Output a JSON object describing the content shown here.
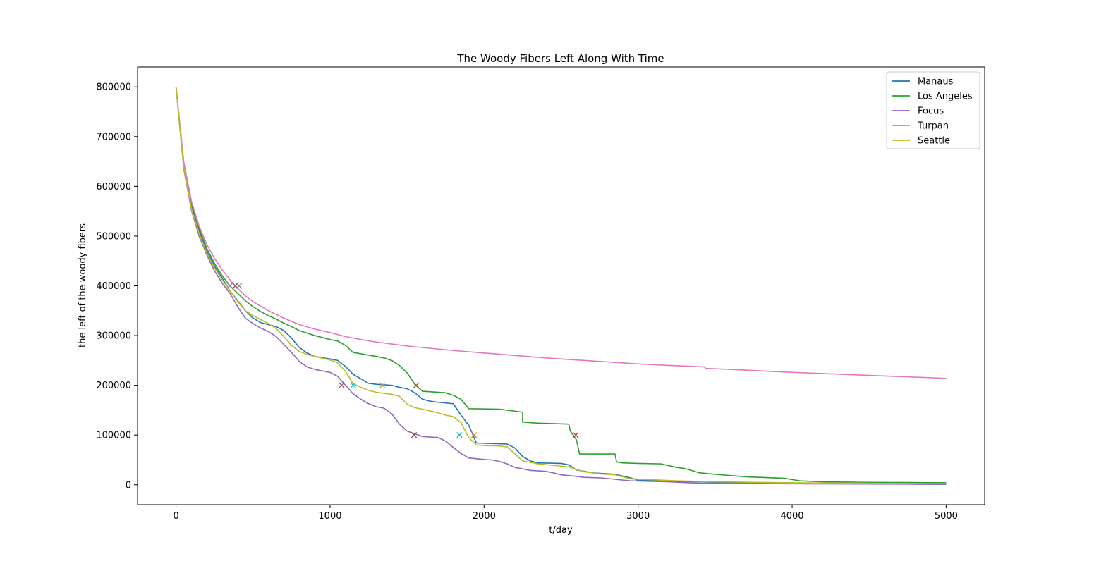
{
  "chart_data": {
    "type": "line",
    "title": "The Woody Fibers Left Along With Time",
    "xlabel": "t/day",
    "ylabel": "the left of the woody fibers",
    "xlim": [
      -250,
      5250
    ],
    "ylim": [
      -40000,
      840000
    ],
    "x_ticks": [
      0,
      1000,
      2000,
      3000,
      4000,
      5000
    ],
    "x_tick_labels": [
      "0",
      "1000",
      "2000",
      "3000",
      "4000",
      "5000"
    ],
    "y_ticks": [
      0,
      100000,
      200000,
      300000,
      400000,
      500000,
      600000,
      700000,
      800000
    ],
    "y_tick_labels": [
      "0",
      "100000",
      "200000",
      "300000",
      "400000",
      "500000",
      "600000",
      "700000",
      "800000"
    ],
    "grid": false,
    "legend_position": "top-right",
    "series": [
      {
        "name": "Manaus",
        "color": "#1f77b4",
        "points": [
          [
            0,
            800000
          ],
          [
            50,
            640000
          ],
          [
            100,
            560000
          ],
          [
            150,
            510000
          ],
          [
            200,
            470000
          ],
          [
            250,
            440000
          ],
          [
            300,
            415000
          ],
          [
            350,
            390000
          ],
          [
            400,
            370000
          ],
          [
            450,
            350000
          ],
          [
            500,
            335000
          ],
          [
            550,
            326000
          ],
          [
            600,
            322000
          ],
          [
            650,
            318000
          ],
          [
            700,
            310000
          ],
          [
            750,
            295000
          ],
          [
            800,
            276000
          ],
          [
            850,
            265000
          ],
          [
            900,
            258000
          ],
          [
            1000,
            253000
          ],
          [
            1050,
            250000
          ],
          [
            1100,
            238000
          ],
          [
            1150,
            222000
          ],
          [
            1200,
            213000
          ],
          [
            1250,
            204000
          ],
          [
            1300,
            202000
          ],
          [
            1400,
            200000
          ],
          [
            1450,
            196000
          ],
          [
            1500,
            193000
          ],
          [
            1550,
            185000
          ],
          [
            1600,
            172000
          ],
          [
            1650,
            168000
          ],
          [
            1700,
            166000
          ],
          [
            1800,
            163000
          ],
          [
            1850,
            140000
          ],
          [
            1900,
            120000
          ],
          [
            1950,
            84000
          ],
          [
            2050,
            83000
          ],
          [
            2150,
            82000
          ],
          [
            2200,
            74000
          ],
          [
            2250,
            57000
          ],
          [
            2300,
            48000
          ],
          [
            2350,
            44000
          ],
          [
            2500,
            43000
          ],
          [
            2550,
            40000
          ],
          [
            2600,
            30000
          ],
          [
            2700,
            24000
          ],
          [
            2850,
            21000
          ],
          [
            2950,
            14000
          ],
          [
            3000,
            9000
          ],
          [
            3500,
            5000
          ],
          [
            4000,
            3000
          ],
          [
            5000,
            1000
          ]
        ]
      },
      {
        "name": "Los Angeles",
        "color": "#2ca02c",
        "points": [
          [
            0,
            800000
          ],
          [
            50,
            645000
          ],
          [
            100,
            565000
          ],
          [
            150,
            515000
          ],
          [
            200,
            475000
          ],
          [
            250,
            445000
          ],
          [
            300,
            420000
          ],
          [
            350,
            400000
          ],
          [
            400,
            385000
          ],
          [
            450,
            370000
          ],
          [
            500,
            358000
          ],
          [
            550,
            348000
          ],
          [
            600,
            340000
          ],
          [
            650,
            333000
          ],
          [
            700,
            325000
          ],
          [
            750,
            318000
          ],
          [
            800,
            310000
          ],
          [
            900,
            300000
          ],
          [
            1000,
            292000
          ],
          [
            1050,
            289000
          ],
          [
            1100,
            280000
          ],
          [
            1150,
            266000
          ],
          [
            1300,
            258000
          ],
          [
            1350,
            255000
          ],
          [
            1400,
            250000
          ],
          [
            1450,
            240000
          ],
          [
            1500,
            225000
          ],
          [
            1550,
            202000
          ],
          [
            1600,
            188000
          ],
          [
            1750,
            185000
          ],
          [
            1800,
            180000
          ],
          [
            1850,
            172000
          ],
          [
            1900,
            153000
          ],
          [
            2100,
            152000
          ],
          [
            2250,
            146000
          ],
          [
            2250,
            126000
          ],
          [
            2350,
            124000
          ],
          [
            2550,
            122000
          ],
          [
            2560,
            108000
          ],
          [
            2600,
            90000
          ],
          [
            2620,
            62000
          ],
          [
            2850,
            62000
          ],
          [
            2860,
            46000
          ],
          [
            2900,
            44000
          ],
          [
            3000,
            43000
          ],
          [
            3150,
            42000
          ],
          [
            3250,
            35000
          ],
          [
            3300,
            33000
          ],
          [
            3400,
            24000
          ],
          [
            3500,
            21000
          ],
          [
            3700,
            16000
          ],
          [
            3950,
            13000
          ],
          [
            4050,
            8000
          ],
          [
            4200,
            6000
          ],
          [
            4500,
            5000
          ],
          [
            5000,
            4000
          ]
        ]
      },
      {
        "name": "Focus",
        "color": "#9467bd",
        "points": [
          [
            0,
            800000
          ],
          [
            50,
            635000
          ],
          [
            100,
            552000
          ],
          [
            150,
            500000
          ],
          [
            200,
            462000
          ],
          [
            250,
            430000
          ],
          [
            300,
            405000
          ],
          [
            350,
            385000
          ],
          [
            400,
            358000
          ],
          [
            450,
            335000
          ],
          [
            500,
            324000
          ],
          [
            550,
            315000
          ],
          [
            600,
            308000
          ],
          [
            650,
            298000
          ],
          [
            700,
            282000
          ],
          [
            750,
            266000
          ],
          [
            800,
            248000
          ],
          [
            850,
            237000
          ],
          [
            900,
            232000
          ],
          [
            1000,
            226000
          ],
          [
            1050,
            218000
          ],
          [
            1100,
            200000
          ],
          [
            1150,
            183000
          ],
          [
            1200,
            172000
          ],
          [
            1250,
            163000
          ],
          [
            1300,
            157000
          ],
          [
            1350,
            154000
          ],
          [
            1400,
            143000
          ],
          [
            1450,
            122000
          ],
          [
            1500,
            108000
          ],
          [
            1600,
            97000
          ],
          [
            1650,
            96000
          ],
          [
            1700,
            95000
          ],
          [
            1750,
            88000
          ],
          [
            1800,
            75000
          ],
          [
            1850,
            63000
          ],
          [
            1900,
            54000
          ],
          [
            2000,
            51000
          ],
          [
            2050,
            50000
          ],
          [
            2100,
            47000
          ],
          [
            2150,
            42000
          ],
          [
            2200,
            35000
          ],
          [
            2300,
            29000
          ],
          [
            2400,
            27000
          ],
          [
            2450,
            24000
          ],
          [
            2500,
            20000
          ],
          [
            2600,
            17000
          ],
          [
            2650,
            15000
          ],
          [
            2750,
            14000
          ],
          [
            2850,
            11000
          ],
          [
            2950,
            8000
          ],
          [
            3200,
            6000
          ],
          [
            3400,
            3000
          ],
          [
            4000,
            2000
          ],
          [
            5000,
            1000
          ]
        ]
      },
      {
        "name": "Turpan",
        "color": "#e377c2",
        "points": [
          [
            0,
            800000
          ],
          [
            50,
            650000
          ],
          [
            100,
            570000
          ],
          [
            150,
            520000
          ],
          [
            200,
            483000
          ],
          [
            250,
            455000
          ],
          [
            300,
            432000
          ],
          [
            350,
            412000
          ],
          [
            400,
            395000
          ],
          [
            450,
            380000
          ],
          [
            500,
            368000
          ],
          [
            600,
            350000
          ],
          [
            700,
            335000
          ],
          [
            800,
            322000
          ],
          [
            900,
            313000
          ],
          [
            1000,
            306000
          ],
          [
            1100,
            298000
          ],
          [
            1200,
            292000
          ],
          [
            1300,
            287000
          ],
          [
            1400,
            283000
          ],
          [
            1500,
            279000
          ],
          [
            1600,
            276000
          ],
          [
            1800,
            270000
          ],
          [
            2000,
            265000
          ],
          [
            2200,
            260000
          ],
          [
            2400,
            255000
          ],
          [
            2600,
            251000
          ],
          [
            2800,
            247000
          ],
          [
            3000,
            243000
          ],
          [
            3200,
            240000
          ],
          [
            3430,
            237000
          ],
          [
            3440,
            234000
          ],
          [
            3600,
            232000
          ],
          [
            4000,
            226000
          ],
          [
            4500,
            220000
          ],
          [
            5000,
            214000
          ]
        ]
      },
      {
        "name": "Seattle",
        "color": "#bcbd22",
        "points": [
          [
            0,
            800000
          ],
          [
            50,
            638000
          ],
          [
            100,
            555000
          ],
          [
            150,
            505000
          ],
          [
            200,
            466000
          ],
          [
            250,
            436000
          ],
          [
            300,
            412000
          ],
          [
            350,
            390000
          ],
          [
            400,
            368000
          ],
          [
            450,
            350000
          ],
          [
            500,
            340000
          ],
          [
            550,
            332000
          ],
          [
            600,
            324000
          ],
          [
            650,
            314000
          ],
          [
            700,
            298000
          ],
          [
            750,
            280000
          ],
          [
            800,
            268000
          ],
          [
            850,
            262000
          ],
          [
            900,
            258000
          ],
          [
            1000,
            251000
          ],
          [
            1050,
            245000
          ],
          [
            1100,
            228000
          ],
          [
            1150,
            203000
          ],
          [
            1200,
            196000
          ],
          [
            1250,
            190000
          ],
          [
            1300,
            186000
          ],
          [
            1400,
            182000
          ],
          [
            1450,
            178000
          ],
          [
            1500,
            162000
          ],
          [
            1550,
            155000
          ],
          [
            1600,
            152000
          ],
          [
            1700,
            145000
          ],
          [
            1750,
            140000
          ],
          [
            1800,
            137000
          ],
          [
            1850,
            125000
          ],
          [
            1900,
            95000
          ],
          [
            1950,
            80000
          ],
          [
            2000,
            79000
          ],
          [
            2100,
            78000
          ],
          [
            2150,
            76000
          ],
          [
            2200,
            62000
          ],
          [
            2250,
            48000
          ],
          [
            2350,
            42000
          ],
          [
            2450,
            39000
          ],
          [
            2550,
            36000
          ],
          [
            2650,
            26000
          ],
          [
            2750,
            22000
          ],
          [
            2850,
            20000
          ],
          [
            2950,
            12000
          ],
          [
            3100,
            10000
          ],
          [
            3250,
            8000
          ],
          [
            3500,
            6000
          ],
          [
            4000,
            4000
          ],
          [
            5000,
            2000
          ]
        ]
      }
    ],
    "markers": [
      {
        "x": 350,
        "y": 400000,
        "color": "#7f7f7f"
      },
      {
        "x": 385,
        "y": 400000,
        "color": "#8c564b"
      },
      {
        "x": 410,
        "y": 400000,
        "color": "#7f7f7f"
      },
      {
        "x": 1075,
        "y": 200000,
        "color": "#8c564b"
      },
      {
        "x": 1150,
        "y": 200000,
        "color": "#17becf"
      },
      {
        "x": 1340,
        "y": 200000,
        "color": "#ff7f0e"
      },
      {
        "x": 1560,
        "y": 200000,
        "color": "#d62728"
      },
      {
        "x": 1545,
        "y": 100000,
        "color": "#8c564b"
      },
      {
        "x": 1840,
        "y": 100000,
        "color": "#17becf"
      },
      {
        "x": 1935,
        "y": 100000,
        "color": "#ff7f0e"
      },
      {
        "x": 2595,
        "y": 100000,
        "color": "#d62728"
      }
    ]
  }
}
